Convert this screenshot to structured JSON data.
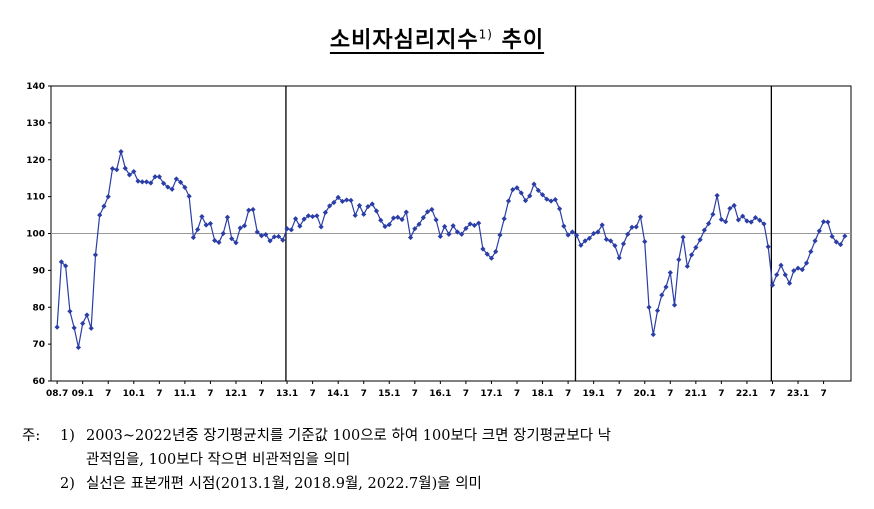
{
  "title": {
    "text": "소비자심리지수",
    "superscript": "1)",
    "suffix": "추이"
  },
  "chart_data": {
    "type": "line",
    "title": "소비자심리지수 추이",
    "xlabel": "",
    "ylabel": "",
    "ylim": [
      60,
      140
    ],
    "yticks": [
      60,
      70,
      80,
      90,
      100,
      110,
      120,
      130,
      140
    ],
    "baseline": 100,
    "x_tick_labels": [
      "08.7",
      "09.1",
      "7",
      "10.1",
      "7",
      "11.1",
      "7",
      "12.1",
      "7",
      "13.1",
      "7",
      "14.1",
      "7",
      "15.1",
      "7",
      "16.1",
      "7",
      "17.1",
      "7",
      "18.1",
      "7",
      "19.1",
      "7",
      "20.1",
      "7",
      "21.1",
      "7",
      "22.1",
      "7",
      "23.1",
      "7"
    ],
    "x_tick_month_index": [
      0,
      6,
      12,
      18,
      24,
      30,
      36,
      42,
      48,
      54,
      60,
      66,
      72,
      78,
      84,
      90,
      96,
      102,
      108,
      114,
      120,
      126,
      132,
      138,
      144,
      150,
      156,
      162,
      168,
      174,
      180
    ],
    "revision_lines_month_index": [
      54,
      122,
      168
    ],
    "revision_labels": [
      "2013.1",
      "2018.9",
      "2022.7"
    ],
    "grid": false,
    "series": [
      {
        "color": "#2b3ea6",
        "start": "2008.7",
        "values": [
          74.6,
          92.3,
          91.2,
          78.9,
          74.4,
          69.1,
          75.6,
          77.9,
          74.3,
          94.2,
          105.0,
          107.4,
          110.0,
          117.6,
          117.3,
          122.2,
          117.7,
          115.9,
          116.8,
          114.2,
          114.0,
          114.0,
          113.7,
          115.4,
          115.4,
          113.6,
          112.6,
          112.0,
          114.8,
          113.9,
          112.5,
          110.1,
          98.9,
          101.1,
          104.6,
          102.3,
          102.7,
          98.1,
          97.6,
          100.0,
          104.4,
          98.6,
          97.5,
          101.5,
          102.1,
          106.3,
          106.5,
          100.4,
          99.4,
          99.7,
          98.0,
          99.1,
          99.2,
          98.2,
          101.3,
          101.0,
          104.0,
          102.0,
          103.9,
          104.8,
          104.6,
          104.8,
          101.8,
          105.7,
          107.5,
          108.4,
          109.8,
          108.7,
          109.1,
          109.0,
          104.9,
          107.6,
          105.2,
          107.3,
          108.0,
          106.1,
          103.6,
          101.9,
          102.4,
          104.2,
          104.4,
          103.8,
          105.8,
          98.9,
          101.3,
          102.5,
          104.3,
          105.9,
          106.5,
          103.7,
          99.2,
          101.9,
          99.8,
          102.1,
          100.4,
          99.8,
          101.4,
          102.6,
          102.2,
          102.8,
          95.8,
          94.4,
          93.3,
          95.1,
          99.6,
          104.0,
          108.8,
          111.9,
          112.4,
          111.0,
          108.9,
          110.2,
          113.4,
          111.7,
          110.5,
          109.3,
          108.8,
          109.2,
          106.7,
          102.0,
          99.6,
          100.4,
          99.5,
          96.8,
          98.0,
          98.7,
          100.0,
          100.4,
          102.3,
          98.4,
          98.0,
          96.7,
          93.4,
          97.2,
          99.8,
          101.7,
          101.8,
          104.5,
          97.8,
          80.0,
          72.6,
          79.1,
          83.3,
          85.5,
          89.4,
          80.6,
          92.9,
          99.0,
          91.1,
          94.2,
          96.2,
          98.3,
          100.9,
          102.7,
          105.2,
          110.3,
          103.8,
          103.2,
          106.8,
          107.6,
          103.7,
          104.7,
          103.4,
          103.1,
          104.3,
          103.6,
          102.6,
          96.4,
          86.0,
          88.8,
          91.4,
          88.8,
          86.5,
          89.9,
          90.6,
          90.2,
          92.0,
          95.1,
          98.0,
          100.7,
          103.2,
          103.1,
          99.2,
          97.7,
          97.0,
          99.3
        ]
      }
    ]
  },
  "notes": {
    "prefix": "주:",
    "note1_num": "1)",
    "note1_line1": "2003~2022년중 장기평균치를 기준값 100으로 하여 100보다 크면 장기평균보다 낙",
    "note1_line2": "관적임을, 100보다 작으면 비관적임을 의미",
    "note2_num": "2)",
    "note2_text": "실선은 표본개편 시점(2013.1월, 2018.9월, 2022.7월)을 의미"
  }
}
